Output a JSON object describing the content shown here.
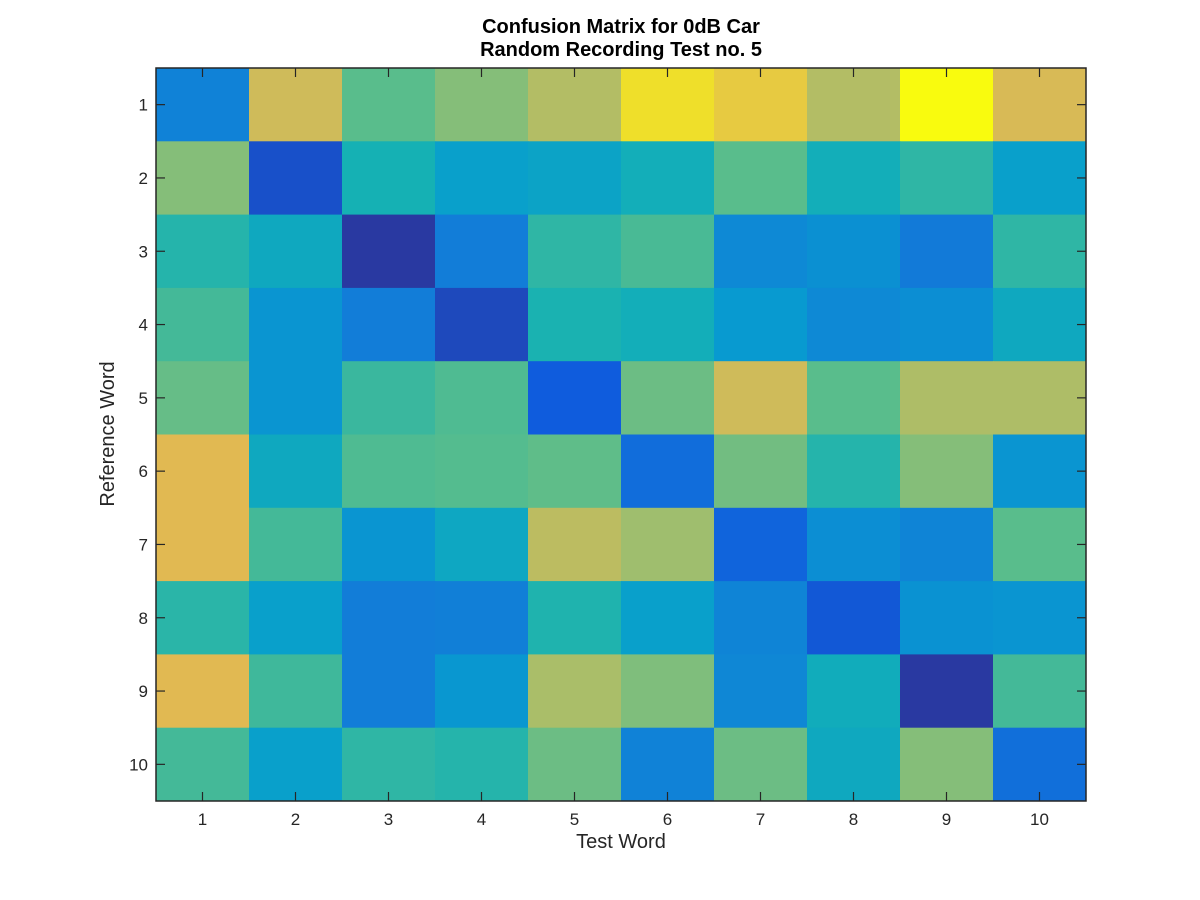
{
  "chart_data": {
    "type": "heatmap",
    "title_lines": [
      "Confusion Matrix for 0dB Car",
      "Random Recording Test no. 5"
    ],
    "xlabel": "Test Word",
    "ylabel": "Reference Word",
    "x": [
      1,
      2,
      3,
      4,
      5,
      6,
      7,
      8,
      9,
      10
    ],
    "y": [
      1,
      2,
      3,
      4,
      5,
      6,
      7,
      8,
      9,
      10
    ],
    "x_tick_labels": [
      "1",
      "2",
      "3",
      "4",
      "5",
      "6",
      "7",
      "8",
      "9",
      "10"
    ],
    "y_tick_labels": [
      "1",
      "2",
      "3",
      "4",
      "5",
      "6",
      "7",
      "8",
      "9",
      "10"
    ],
    "colormap": "parula",
    "colorbar": false,
    "grid": false,
    "values": [
      [
        0.27,
        0.84,
        0.63,
        0.7,
        0.78,
        0.95,
        0.91,
        0.78,
        1.0,
        0.86
      ],
      [
        0.7,
        0.1,
        0.5,
        0.4,
        0.42,
        0.48,
        0.63,
        0.48,
        0.55,
        0.4
      ],
      [
        0.53,
        0.45,
        0.04,
        0.25,
        0.55,
        0.6,
        0.3,
        0.33,
        0.24,
        0.55
      ],
      [
        0.59,
        0.35,
        0.25,
        0.08,
        0.51,
        0.48,
        0.37,
        0.3,
        0.32,
        0.45
      ],
      [
        0.65,
        0.35,
        0.57,
        0.61,
        0.13,
        0.66,
        0.84,
        0.63,
        0.77,
        0.77
      ],
      [
        0.88,
        0.45,
        0.61,
        0.62,
        0.64,
        0.19,
        0.67,
        0.53,
        0.7,
        0.35
      ],
      [
        0.88,
        0.59,
        0.35,
        0.44,
        0.8,
        0.74,
        0.16,
        0.32,
        0.28,
        0.63
      ],
      [
        0.54,
        0.4,
        0.25,
        0.26,
        0.52,
        0.4,
        0.28,
        0.12,
        0.34,
        0.35
      ],
      [
        0.88,
        0.58,
        0.25,
        0.36,
        0.76,
        0.69,
        0.29,
        0.47,
        0.04,
        0.59
      ],
      [
        0.59,
        0.4,
        0.55,
        0.53,
        0.66,
        0.27,
        0.66,
        0.45,
        0.7,
        0.2
      ]
    ]
  }
}
